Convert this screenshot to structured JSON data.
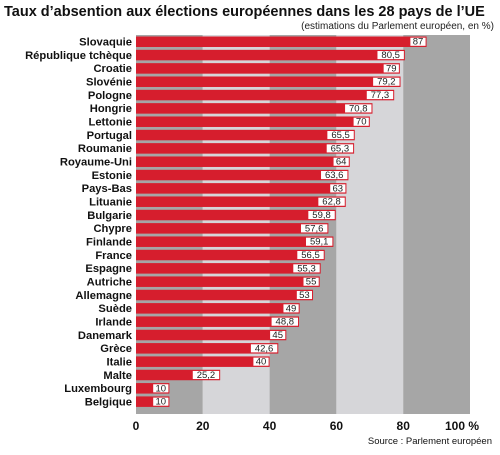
{
  "chart_data": {
    "type": "bar",
    "orientation": "horizontal",
    "title": "Taux d’absention aux élections européennes dans les 28 pays de l’UE",
    "subtitle": "(estimations du Parlement européen, en %)",
    "source": "Source : Parlement européen",
    "categories": [
      "Slovaquie",
      "République tchèque",
      "Croatie",
      "Slovénie",
      "Pologne",
      "Hongrie",
      "Lettonie",
      "Portugal",
      "Roumanie",
      "Royaume-Uni",
      "Estonie",
      "Pays-Bas",
      "Lituanie",
      "Bulgarie",
      "Chypre",
      "Finlande",
      "France",
      "Espagne",
      "Autriche",
      "Allemagne",
      "Suède",
      "Irlande",
      "Danemark",
      "Grèce",
      "Italie",
      "Malte",
      "Luxembourg",
      "Belgique"
    ],
    "value_labels": [
      "87",
      "80,5",
      "79",
      "79,2",
      "77,3",
      "70,8",
      "70",
      "65,5",
      "65,3",
      "64",
      "63,6",
      "63",
      "62,8",
      "59,8",
      "57,6",
      "59,1",
      "56,5",
      "55,3",
      "55",
      "53",
      "49",
      "48,8",
      "45",
      "42,6",
      "40",
      "25,2",
      "10",
      "10"
    ],
    "values": [
      87,
      80.5,
      79,
      79.2,
      77.3,
      70.8,
      70,
      65.5,
      65.3,
      64,
      63.6,
      63,
      62.8,
      59.8,
      57.6,
      59.1,
      56.5,
      55.3,
      55,
      53,
      49,
      48.8,
      45,
      42.6,
      40,
      25.2,
      10,
      10
    ],
    "ticks": [
      "0",
      "20",
      "40",
      "60",
      "80",
      "100 %"
    ],
    "tick_values": [
      0,
      20,
      40,
      60,
      80,
      100
    ],
    "xlim": [
      0,
      100
    ],
    "bar_color": "#d61e2d",
    "band_colors": [
      "#a6a6a6",
      "#d6d6d9"
    ],
    "grid": false,
    "legend": "none"
  }
}
